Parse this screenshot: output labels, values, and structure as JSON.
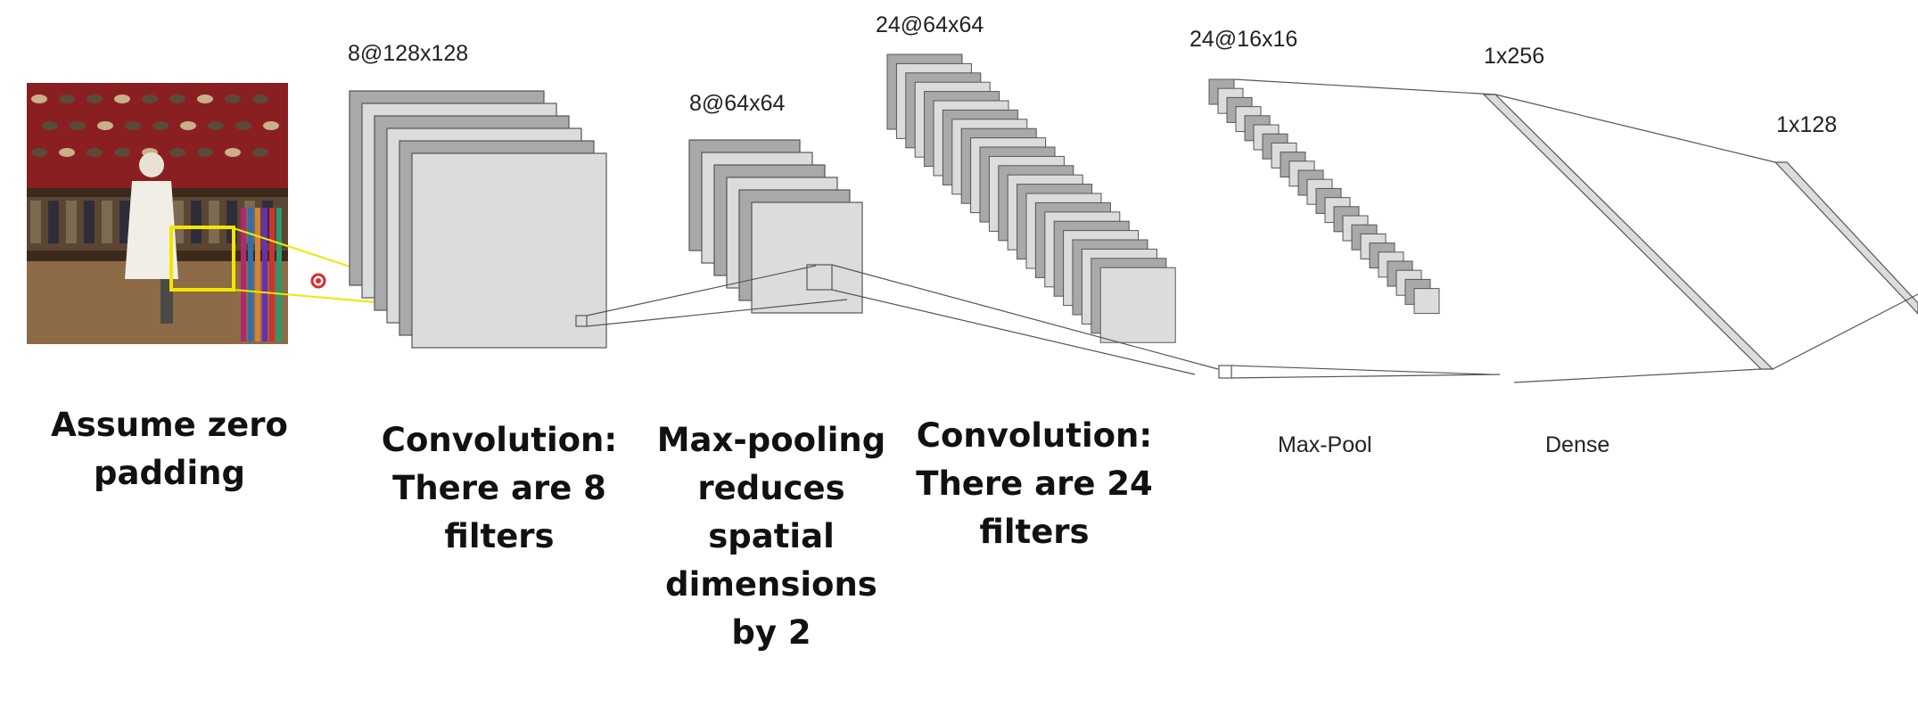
{
  "layers": [
    {
      "id": "conv1",
      "size_label": "8@128x128",
      "maps": 8,
      "caption": "Convolution:\nThere are 8\nfilters"
    },
    {
      "id": "pool1",
      "size_label": "8@64x64",
      "maps": 8,
      "caption": "Max-pooling\nreduces\nspatial\ndimensions\nby 2"
    },
    {
      "id": "conv2",
      "size_label": "24@64x64",
      "maps": 24,
      "caption": "Convolution:\nThere are 24\nfilters"
    },
    {
      "id": "pool2",
      "size_label": "24@16x16",
      "maps": 24,
      "caption": "Max-Pool"
    },
    {
      "id": "dense1",
      "size_label": "1x256",
      "caption": "Dense"
    },
    {
      "id": "dense2",
      "size_label": "1x128"
    }
  ],
  "input": {
    "caption": "Assume zero\npadding"
  },
  "colors": {
    "map_dark": "#a9a9a9",
    "map_light": "#dcdcdc",
    "map_stroke": "#555555",
    "highlight_box": "#f2e600",
    "connector": "#555555",
    "pointer_dot": "#e3262d"
  }
}
